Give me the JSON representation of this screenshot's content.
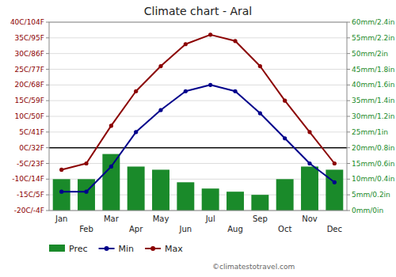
{
  "chart_data": {
    "type": "bar",
    "title": "Climate chart - Aral",
    "categories": [
      "Jan",
      "Feb",
      "Mar",
      "Apr",
      "May",
      "Jun",
      "Jul",
      "Aug",
      "Sep",
      "Oct",
      "Nov",
      "Dec"
    ],
    "series": [
      {
        "name": "Prec",
        "type": "bar",
        "axis": "y2",
        "color": "#1a8a2a",
        "values": [
          10,
          10,
          18,
          14,
          13,
          9,
          7,
          6,
          5,
          10,
          14,
          13
        ]
      },
      {
        "name": "Min",
        "type": "line",
        "color": "#00008b",
        "marker": "circle",
        "values": [
          -14,
          -14,
          -6,
          5,
          12,
          18,
          20,
          18,
          11,
          3,
          -5,
          -11
        ]
      },
      {
        "name": "Max",
        "type": "line",
        "color": "#8b0000",
        "marker": "circle",
        "values": [
          -7,
          -5,
          7,
          18,
          26,
          33,
          36,
          34,
          26,
          15,
          5,
          -5
        ]
      }
    ],
    "ylim": [
      -20,
      40
    ],
    "yticks": [
      {
        "value": -20,
        "label": "-20C/-4F"
      },
      {
        "value": -15,
        "label": "-15C/5F"
      },
      {
        "value": -10,
        "label": "-10C/14F"
      },
      {
        "value": -5,
        "label": "-5C/23F"
      },
      {
        "value": 0,
        "label": "0C/32F"
      },
      {
        "value": 5,
        "label": "5C/41F"
      },
      {
        "value": 10,
        "label": "10C/50F"
      },
      {
        "value": 15,
        "label": "15C/59F"
      },
      {
        "value": 20,
        "label": "20C/68F"
      },
      {
        "value": 25,
        "label": "25C/77F"
      },
      {
        "value": 30,
        "label": "30C/86F"
      },
      {
        "value": 35,
        "label": "35C/95F"
      },
      {
        "value": 40,
        "label": "40C/104F"
      }
    ],
    "y2lim": [
      0,
      60
    ],
    "y2ticks": [
      {
        "value": 0,
        "label": "0mm/0in"
      },
      {
        "value": 5,
        "label": "5mm/0.2in"
      },
      {
        "value": 10,
        "label": "10mm/0.4in"
      },
      {
        "value": 15,
        "label": "15mm/0.6in"
      },
      {
        "value": 20,
        "label": "20mm/0.8in"
      },
      {
        "value": 25,
        "label": "25mm/1in"
      },
      {
        "value": 30,
        "label": "30mm/1.2in"
      },
      {
        "value": 35,
        "label": "35mm/1.4in"
      },
      {
        "value": 40,
        "label": "40mm/1.6in"
      },
      {
        "value": 45,
        "label": "45mm/1.8in"
      },
      {
        "value": 50,
        "label": "50mm/2in"
      },
      {
        "value": 55,
        "label": "55mm/2.2in"
      },
      {
        "value": 60,
        "label": "60mm/2.4in"
      }
    ],
    "grid": true,
    "legend": "bottom",
    "annotations": [
      "©climatestotravel.com"
    ]
  }
}
